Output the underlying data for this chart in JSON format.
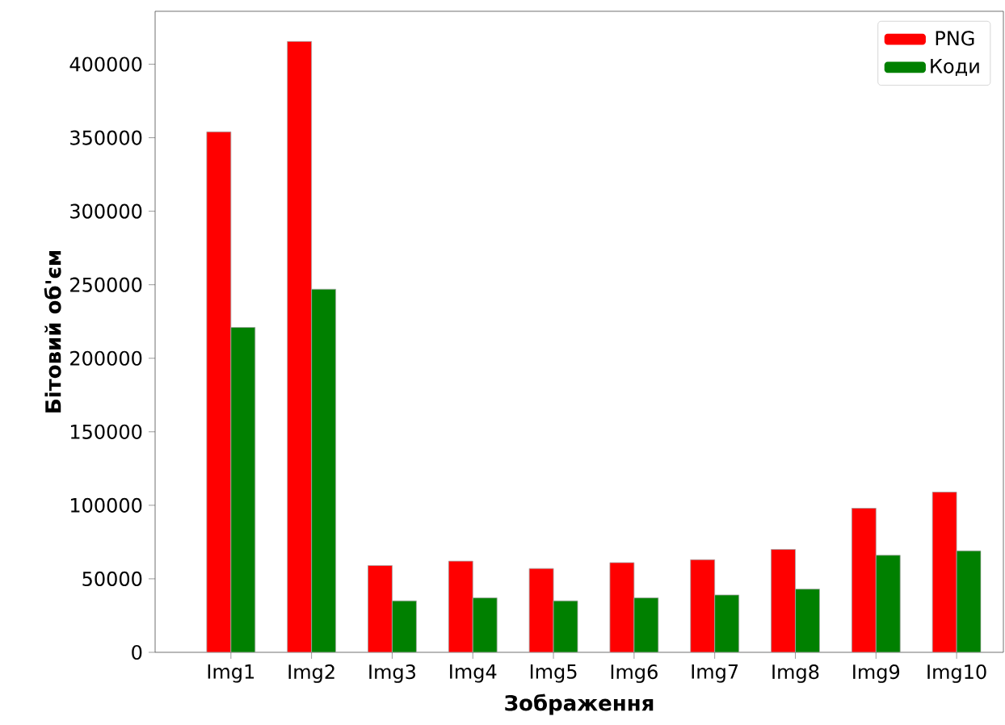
{
  "chart_data": {
    "type": "bar",
    "xlabel": "Зображення",
    "ylabel": "Бітовий об'єм",
    "categories": [
      "Img1",
      "Img2",
      "Img3",
      "Img4",
      "Img5",
      "Img6",
      "Img7",
      "Img8",
      "Img9",
      "Img10"
    ],
    "series": [
      {
        "name": "PNG",
        "color": "#ff0000",
        "values": [
          354000,
          415500,
          59000,
          62000,
          57000,
          61000,
          63000,
          70000,
          98000,
          109000
        ]
      },
      {
        "name": "Коди",
        "color": "#008000",
        "values": [
          221000,
          247000,
          35000,
          37000,
          35000,
          37000,
          39000,
          43000,
          66000,
          69000
        ]
      }
    ],
    "ylim": [
      0,
      436000
    ],
    "yticks": [
      0,
      50000,
      100000,
      150000,
      200000,
      250000,
      300000,
      350000,
      400000
    ],
    "grid": false,
    "legend": "top right"
  }
}
